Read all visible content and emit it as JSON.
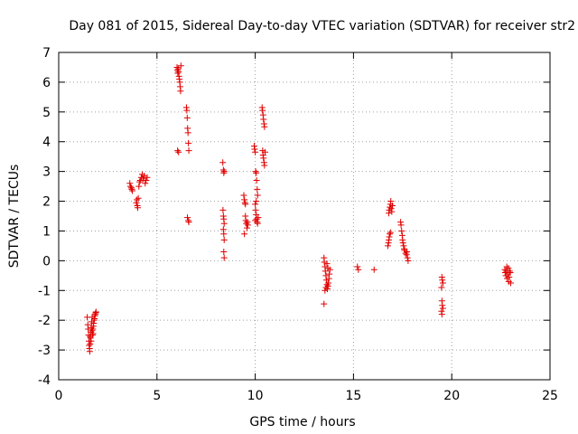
{
  "chart_data": {
    "type": "scatter",
    "title": "Day 081 of 2015, Sidereal Day-to-day VTEC variation (SDTVAR) for receiver str2",
    "xlabel": "GPS time / hours",
    "ylabel": "SDTVAR / TECUs",
    "xlim": [
      0,
      25
    ],
    "ylim": [
      -4,
      7
    ],
    "xticks": [
      0,
      5,
      10,
      15,
      20,
      25
    ],
    "yticks": [
      -4,
      -3,
      -2,
      -1,
      0,
      1,
      2,
      3,
      4,
      5,
      6,
      7
    ],
    "xtick_labels": [
      "0",
      "5",
      "10",
      "15",
      "20",
      "25"
    ],
    "ytick_labels": [
      "-4",
      "-3",
      "-2",
      "-1",
      "0",
      "1",
      "2",
      "3",
      "4",
      "5",
      "6",
      "7"
    ],
    "grid": true,
    "marker": "+",
    "series": [
      {
        "name": "SDTVAR",
        "color": "#e00000",
        "points": [
          [
            1.45,
            -1.9
          ],
          [
            1.48,
            -2.15
          ],
          [
            1.5,
            -2.3
          ],
          [
            1.52,
            -2.5
          ],
          [
            1.54,
            -2.7
          ],
          [
            1.55,
            -2.85
          ],
          [
            1.57,
            -2.95
          ],
          [
            1.58,
            -3.05
          ],
          [
            1.6,
            -2.8
          ],
          [
            1.62,
            -2.6
          ],
          [
            1.64,
            -2.4
          ],
          [
            1.66,
            -2.25
          ],
          [
            1.68,
            -2.05
          ],
          [
            1.7,
            -1.9
          ],
          [
            1.72,
            -2.5
          ],
          [
            1.74,
            -2.3
          ],
          [
            1.76,
            -2.2
          ],
          [
            1.78,
            -2.1
          ],
          [
            1.8,
            -2.0
          ],
          [
            1.82,
            -1.95
          ],
          [
            1.84,
            -1.85
          ],
          [
            1.86,
            -1.8
          ],
          [
            1.88,
            -1.75
          ],
          [
            1.9,
            -1.72
          ],
          [
            1.6,
            -2.55
          ],
          [
            1.65,
            -2.7
          ],
          [
            1.7,
            -2.35
          ],
          [
            1.75,
            -2.45
          ],
          [
            3.62,
            2.6
          ],
          [
            3.65,
            2.5
          ],
          [
            3.7,
            2.45
          ],
          [
            3.72,
            2.4
          ],
          [
            3.75,
            2.35
          ],
          [
            3.95,
            1.95
          ],
          [
            3.98,
            2.05
          ],
          [
            4.0,
            1.85
          ],
          [
            4.02,
            1.78
          ],
          [
            4.05,
            2.1
          ],
          [
            4.08,
            2.5
          ],
          [
            4.12,
            2.65
          ],
          [
            4.15,
            2.7
          ],
          [
            4.2,
            2.8
          ],
          [
            4.25,
            2.9
          ],
          [
            4.3,
            2.75
          ],
          [
            4.35,
            2.85
          ],
          [
            4.4,
            2.6
          ],
          [
            4.45,
            2.7
          ],
          [
            4.5,
            2.8
          ],
          [
            6.02,
            6.5
          ],
          [
            6.04,
            6.4
          ],
          [
            6.06,
            6.3
          ],
          [
            6.08,
            6.45
          ],
          [
            6.1,
            6.35
          ],
          [
            6.12,
            6.2
          ],
          [
            6.14,
            6.1
          ],
          [
            6.16,
            6.0
          ],
          [
            6.18,
            5.85
          ],
          [
            6.2,
            5.7
          ],
          [
            6.22,
            6.55
          ],
          [
            6.05,
            3.7
          ],
          [
            6.1,
            3.65
          ],
          [
            6.5,
            5.15
          ],
          [
            6.52,
            5.05
          ],
          [
            6.54,
            4.8
          ],
          [
            6.56,
            4.45
          ],
          [
            6.58,
            4.3
          ],
          [
            6.6,
            3.95
          ],
          [
            6.62,
            3.7
          ],
          [
            6.55,
            1.45
          ],
          [
            6.6,
            1.35
          ],
          [
            6.62,
            1.3
          ],
          [
            8.35,
            3.3
          ],
          [
            8.38,
            3.05
          ],
          [
            8.4,
            2.95
          ],
          [
            8.42,
            3.0
          ],
          [
            8.36,
            1.7
          ],
          [
            8.38,
            1.5
          ],
          [
            8.4,
            1.4
          ],
          [
            8.42,
            1.25
          ],
          [
            8.38,
            1.05
          ],
          [
            8.4,
            0.9
          ],
          [
            8.42,
            0.7
          ],
          [
            8.4,
            0.3
          ],
          [
            8.42,
            0.1
          ],
          [
            9.42,
            2.2
          ],
          [
            9.45,
            2.05
          ],
          [
            9.48,
            1.95
          ],
          [
            9.5,
            1.5
          ],
          [
            9.52,
            1.35
          ],
          [
            9.55,
            1.25
          ],
          [
            9.58,
            1.1
          ],
          [
            9.45,
            0.9
          ],
          [
            9.6,
            1.3
          ],
          [
            9.62,
            1.2
          ],
          [
            9.5,
            1.9
          ],
          [
            9.95,
            3.85
          ],
          [
            9.97,
            3.75
          ],
          [
            10.0,
            3.65
          ],
          [
            10.02,
            3.0
          ],
          [
            10.05,
            2.95
          ],
          [
            10.07,
            2.7
          ],
          [
            10.1,
            2.4
          ],
          [
            10.12,
            2.2
          ],
          [
            10.0,
            1.9
          ],
          [
            10.02,
            1.7
          ],
          [
            10.05,
            1.55
          ],
          [
            10.07,
            1.4
          ],
          [
            10.1,
            1.3
          ],
          [
            10.12,
            1.25
          ],
          [
            10.15,
            1.45
          ],
          [
            10.0,
            1.35
          ],
          [
            10.05,
            2.0
          ],
          [
            10.35,
            5.15
          ],
          [
            10.37,
            5.05
          ],
          [
            10.4,
            4.9
          ],
          [
            10.42,
            4.75
          ],
          [
            10.45,
            4.6
          ],
          [
            10.47,
            4.5
          ],
          [
            10.38,
            3.7
          ],
          [
            10.4,
            3.55
          ],
          [
            10.42,
            3.45
          ],
          [
            10.45,
            3.3
          ],
          [
            10.47,
            3.2
          ],
          [
            10.5,
            3.65
          ],
          [
            13.5,
            0.1
          ],
          [
            13.52,
            -0.05
          ],
          [
            13.55,
            -0.2
          ],
          [
            13.57,
            -0.35
          ],
          [
            13.6,
            -0.5
          ],
          [
            13.62,
            -0.65
          ],
          [
            13.65,
            -0.8
          ],
          [
            13.67,
            -0.95
          ],
          [
            13.7,
            -0.85
          ],
          [
            13.72,
            -0.75
          ],
          [
            13.75,
            -0.6
          ],
          [
            13.77,
            -0.45
          ],
          [
            13.8,
            -0.3
          ],
          [
            13.55,
            -1.0
          ],
          [
            13.5,
            -1.45
          ],
          [
            13.6,
            -0.9
          ],
          [
            13.65,
            -0.1
          ],
          [
            13.7,
            -0.25
          ],
          [
            15.2,
            -0.2
          ],
          [
            15.25,
            -0.3
          ],
          [
            16.05,
            -0.3
          ],
          [
            16.75,
            0.5
          ],
          [
            16.78,
            0.6
          ],
          [
            16.8,
            0.7
          ],
          [
            16.82,
            0.8
          ],
          [
            16.85,
            0.9
          ],
          [
            16.88,
            0.95
          ],
          [
            16.8,
            1.6
          ],
          [
            16.82,
            1.7
          ],
          [
            16.85,
            1.8
          ],
          [
            16.88,
            1.9
          ],
          [
            16.9,
            2.0
          ],
          [
            16.92,
            1.75
          ],
          [
            16.95,
            1.65
          ],
          [
            16.98,
            1.85
          ],
          [
            17.4,
            1.3
          ],
          [
            17.42,
            1.2
          ],
          [
            17.45,
            1.0
          ],
          [
            17.48,
            0.85
          ],
          [
            17.5,
            0.7
          ],
          [
            17.52,
            0.6
          ],
          [
            17.55,
            0.5
          ],
          [
            17.58,
            0.4
          ],
          [
            17.6,
            0.35
          ],
          [
            17.65,
            0.25
          ],
          [
            17.7,
            0.2
          ],
          [
            17.72,
            0.3
          ],
          [
            17.75,
            0.1
          ],
          [
            17.78,
            0.0
          ],
          [
            19.5,
            -0.55
          ],
          [
            19.52,
            -0.65
          ],
          [
            19.55,
            -0.75
          ],
          [
            19.48,
            -0.9
          ],
          [
            19.5,
            -1.35
          ],
          [
            19.52,
            -1.5
          ],
          [
            19.55,
            -1.6
          ],
          [
            19.48,
            -1.7
          ],
          [
            19.5,
            -1.8
          ],
          [
            22.7,
            -0.3
          ],
          [
            22.72,
            -0.4
          ],
          [
            22.75,
            -0.5
          ],
          [
            22.78,
            -0.35
          ],
          [
            22.8,
            -0.2
          ],
          [
            22.82,
            -0.6
          ],
          [
            22.85,
            -0.45
          ],
          [
            22.88,
            -0.25
          ],
          [
            22.9,
            -0.7
          ],
          [
            22.92,
            -0.55
          ],
          [
            22.95,
            -0.35
          ],
          [
            22.98,
            -0.4
          ],
          [
            23.0,
            -0.75
          ]
        ]
      }
    ]
  }
}
